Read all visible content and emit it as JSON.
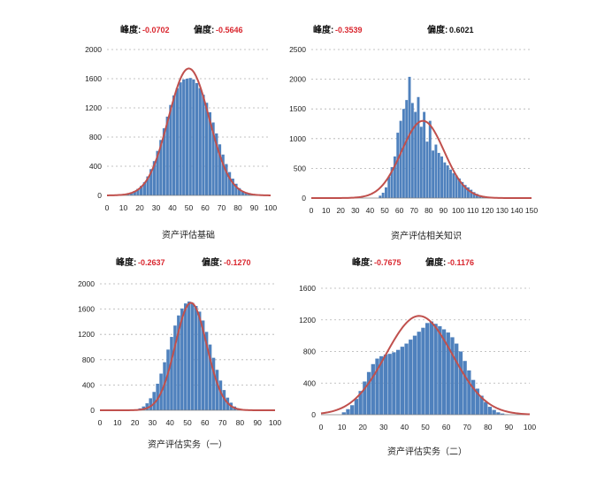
{
  "colors": {
    "bar": "#4f81bd",
    "curve": "#c0504d",
    "grid": "#b0b0b0",
    "highlight": "#d9262e",
    "text": "#111111"
  },
  "chart_data": [
    {
      "type": "bar",
      "title": "资产评估基础",
      "xlabel": "资产评估基础",
      "kurtosis_label": "峰度:",
      "kurtosis": "-0.0702",
      "skewness_label": "偏度:",
      "skewness": "-0.5646",
      "kurtosis_highlight": true,
      "skewness_highlight": true,
      "xlim": [
        0,
        100
      ],
      "ylim": [
        0,
        2000
      ],
      "xticks": [
        0,
        10,
        20,
        30,
        40,
        50,
        60,
        70,
        80,
        90,
        100
      ],
      "yticks": [
        0,
        400,
        800,
        1200,
        1600,
        2000
      ],
      "bin_width": 2,
      "bin_starts": [
        12,
        14,
        16,
        18,
        20,
        22,
        24,
        26,
        28,
        30,
        32,
        34,
        36,
        38,
        40,
        42,
        44,
        46,
        48,
        50,
        52,
        54,
        56,
        58,
        60,
        62,
        64,
        66,
        68,
        70,
        72,
        74,
        76,
        78,
        80,
        82,
        84,
        86,
        88,
        90
      ],
      "values": [
        20,
        40,
        60,
        90,
        130,
        180,
        260,
        360,
        470,
        610,
        760,
        920,
        1080,
        1240,
        1370,
        1470,
        1550,
        1590,
        1600,
        1610,
        1590,
        1540,
        1470,
        1380,
        1270,
        1140,
        1000,
        850,
        700,
        560,
        430,
        320,
        230,
        160,
        100,
        60,
        35,
        20,
        10,
        5
      ],
      "curve": {
        "mean": 50,
        "sd": 12.5,
        "peak": 1740
      }
    },
    {
      "type": "bar",
      "title": "资产评估相关知识",
      "xlabel": "资产评估相关知识",
      "kurtosis_label": "峰度:",
      "kurtosis": "-0.3539",
      "skewness_label": "偏度:",
      "skewness": "0.6021",
      "kurtosis_highlight": true,
      "skewness_highlight": false,
      "xlim": [
        0,
        150
      ],
      "ylim": [
        0,
        2500
      ],
      "xticks": [
        0,
        10,
        20,
        30,
        40,
        50,
        60,
        70,
        80,
        90,
        100,
        110,
        120,
        130,
        140,
        150
      ],
      "yticks": [
        0,
        500,
        1000,
        1500,
        2000,
        2500
      ],
      "bin_width": 2,
      "bin_starts": [
        46,
        48,
        50,
        52,
        54,
        56,
        58,
        60,
        62,
        64,
        66,
        68,
        70,
        72,
        74,
        76,
        78,
        80,
        82,
        84,
        86,
        88,
        90,
        92,
        94,
        96,
        98,
        100,
        102,
        104,
        106,
        108,
        110,
        112,
        114,
        116,
        118
      ],
      "values": [
        40,
        90,
        180,
        360,
        520,
        700,
        1100,
        1300,
        1500,
        1650,
        2040,
        1600,
        1450,
        1700,
        1200,
        1450,
        950,
        1300,
        800,
        900,
        760,
        700,
        600,
        550,
        480,
        420,
        380,
        330,
        270,
        220,
        180,
        140,
        100,
        70,
        40,
        20,
        10
      ],
      "curve": {
        "mean": 76,
        "sd": 14.5,
        "peak": 1300
      }
    },
    {
      "type": "bar",
      "title": "资产评估实务（一）",
      "xlabel": "资产评估实务（一）",
      "kurtosis_label": "峰度:",
      "kurtosis": "-0.2637",
      "skewness_label": "偏度:",
      "skewness": "-0.1270",
      "kurtosis_highlight": true,
      "skewness_highlight": true,
      "xlim": [
        0,
        100
      ],
      "ylim": [
        0,
        2000
      ],
      "xticks": [
        0,
        10,
        20,
        30,
        40,
        50,
        60,
        70,
        80,
        90,
        100
      ],
      "yticks": [
        0,
        400,
        800,
        1200,
        1600,
        2000
      ],
      "bin_width": 2,
      "bin_starts": [
        20,
        22,
        24,
        26,
        28,
        30,
        32,
        34,
        36,
        38,
        40,
        42,
        44,
        46,
        48,
        50,
        52,
        54,
        56,
        58,
        60,
        62,
        64,
        66,
        68,
        70,
        72,
        74,
        76,
        78,
        80
      ],
      "values": [
        10,
        30,
        60,
        110,
        190,
        290,
        420,
        580,
        760,
        960,
        1160,
        1340,
        1500,
        1610,
        1690,
        1720,
        1700,
        1650,
        1560,
        1420,
        1240,
        1040,
        830,
        640,
        470,
        320,
        200,
        120,
        60,
        30,
        10
      ],
      "curve": {
        "mean": 52,
        "sd": 9,
        "peak": 1700
      }
    },
    {
      "type": "bar",
      "title": "资产评估实务（二）",
      "xlabel": "资产评估实务（二）",
      "kurtosis_label": "峰度:",
      "kurtosis": "-0.7675",
      "skewness_label": "偏度:",
      "skewness": "-0.1176",
      "kurtosis_highlight": true,
      "skewness_highlight": true,
      "xlim": [
        0,
        100
      ],
      "ylim": [
        0,
        1600
      ],
      "xticks": [
        0,
        10,
        20,
        30,
        40,
        50,
        60,
        70,
        80,
        90,
        100
      ],
      "yticks": [
        0,
        400,
        800,
        1200,
        1600
      ],
      "bin_width": 2,
      "bin_starts": [
        10,
        12,
        14,
        16,
        18,
        20,
        22,
        24,
        26,
        28,
        30,
        32,
        34,
        36,
        38,
        40,
        42,
        44,
        46,
        48,
        50,
        52,
        54,
        56,
        58,
        60,
        62,
        64,
        66,
        68,
        70,
        72,
        74,
        76,
        78,
        80,
        82,
        84,
        86,
        88
      ],
      "values": [
        30,
        70,
        120,
        200,
        300,
        420,
        540,
        640,
        710,
        740,
        760,
        770,
        790,
        820,
        860,
        900,
        950,
        1000,
        1050,
        1100,
        1160,
        1180,
        1150,
        1120,
        1080,
        1040,
        980,
        900,
        800,
        680,
        560,
        440,
        330,
        240,
        160,
        100,
        60,
        30,
        15,
        5
      ],
      "curve": {
        "mean": 47,
        "sd": 16,
        "peak": 1250
      }
    }
  ]
}
